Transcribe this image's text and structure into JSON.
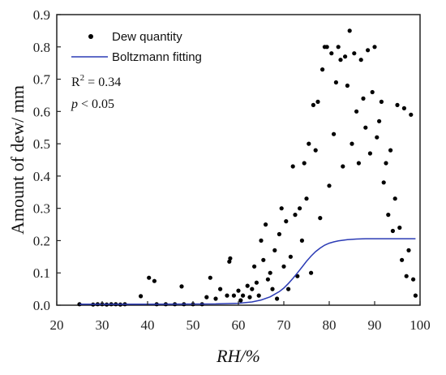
{
  "chart_data": {
    "type": "scatter",
    "title": "",
    "xlabel": "RH/%",
    "ylabel": "Amount of dew/ mm",
    "xlim": [
      20,
      100
    ],
    "ylim": [
      0,
      0.9
    ],
    "x_ticks": [
      "20",
      "30",
      "40",
      "50",
      "60",
      "70",
      "80",
      "90",
      "100"
    ],
    "y_ticks": [
      "0.0",
      "0.1",
      "0.2",
      "0.3",
      "0.4",
      "0.5",
      "0.6",
      "0.7",
      "0.8",
      "0.9"
    ],
    "grid": false,
    "legend_position": "top-left",
    "legend": [
      {
        "label": "Dew quantity",
        "marker": "dot"
      },
      {
        "label": "Boltzmann fitting",
        "marker": "line"
      }
    ],
    "annotations": {
      "r2_prefix": "R",
      "r2_sup": "2",
      "r2_suffix": " = 0.34",
      "p_symbol": "p",
      "p_suffix": " < 0.05"
    },
    "colors": {
      "points": "#000000",
      "fit": "#2b3bb5"
    },
    "series": [
      {
        "type": "scatter",
        "points": [
          [
            25,
            0.003
          ],
          [
            28,
            0.002
          ],
          [
            29,
            0.003
          ],
          [
            30,
            0.003
          ],
          [
            31,
            0.002
          ],
          [
            32,
            0.003
          ],
          [
            33,
            0.003
          ],
          [
            34,
            0.002
          ],
          [
            35,
            0.003
          ],
          [
            38.5,
            0.028
          ],
          [
            40.3,
            0.085
          ],
          [
            41.5,
            0.075
          ],
          [
            42,
            0.003
          ],
          [
            44,
            0.003
          ],
          [
            46,
            0.003
          ],
          [
            47.5,
            0.058
          ],
          [
            48,
            0.003
          ],
          [
            50,
            0.003
          ],
          [
            52,
            0.003
          ],
          [
            53,
            0.025
          ],
          [
            53.8,
            0.085
          ],
          [
            55,
            0.02
          ],
          [
            56,
            0.05
          ],
          [
            57.5,
            0.03
          ],
          [
            58,
            0.135
          ],
          [
            58.2,
            0.145
          ],
          [
            59,
            0.03
          ],
          [
            60,
            0.045
          ],
          [
            60.5,
            0.015
          ],
          [
            61,
            0.03
          ],
          [
            62,
            0.06
          ],
          [
            62.5,
            0.025
          ],
          [
            63,
            0.05
          ],
          [
            63.5,
            0.12
          ],
          [
            64,
            0.07
          ],
          [
            64.5,
            0.03
          ],
          [
            65,
            0.2
          ],
          [
            65.5,
            0.14
          ],
          [
            66,
            0.25
          ],
          [
            66.5,
            0.08
          ],
          [
            67,
            0.1
          ],
          [
            67.5,
            0.05
          ],
          [
            68,
            0.17
          ],
          [
            68.5,
            0.02
          ],
          [
            69,
            0.22
          ],
          [
            69.5,
            0.3
          ],
          [
            70,
            0.12
          ],
          [
            70.5,
            0.26
          ],
          [
            71,
            0.05
          ],
          [
            71.5,
            0.15
          ],
          [
            72,
            0.43
          ],
          [
            72.5,
            0.28
          ],
          [
            73,
            0.09
          ],
          [
            73.5,
            0.3
          ],
          [
            74,
            0.2
          ],
          [
            74.5,
            0.44
          ],
          [
            75,
            0.33
          ],
          [
            75.5,
            0.5
          ],
          [
            76,
            0.1
          ],
          [
            76.5,
            0.62
          ],
          [
            77,
            0.48
          ],
          [
            77.5,
            0.63
          ],
          [
            78,
            0.27
          ],
          [
            78.5,
            0.73
          ],
          [
            79,
            0.8
          ],
          [
            79.5,
            0.8
          ],
          [
            80,
            0.37
          ],
          [
            80.5,
            0.78
          ],
          [
            81,
            0.53
          ],
          [
            81.5,
            0.69
          ],
          [
            82,
            0.8
          ],
          [
            82.5,
            0.76
          ],
          [
            83,
            0.43
          ],
          [
            83.5,
            0.77
          ],
          [
            84,
            0.68
          ],
          [
            84.5,
            0.85
          ],
          [
            85,
            0.5
          ],
          [
            85.5,
            0.78
          ],
          [
            86,
            0.6
          ],
          [
            86.5,
            0.44
          ],
          [
            87,
            0.76
          ],
          [
            87.5,
            0.64
          ],
          [
            88,
            0.55
          ],
          [
            88.5,
            0.79
          ],
          [
            89,
            0.47
          ],
          [
            89.5,
            0.66
          ],
          [
            90,
            0.8
          ],
          [
            90.5,
            0.52
          ],
          [
            91,
            0.57
          ],
          [
            91.5,
            0.63
          ],
          [
            92,
            0.38
          ],
          [
            92.5,
            0.44
          ],
          [
            93,
            0.28
          ],
          [
            93.5,
            0.48
          ],
          [
            94,
            0.23
          ],
          [
            94.5,
            0.33
          ],
          [
            95,
            0.62
          ],
          [
            95.5,
            0.24
          ],
          [
            96,
            0.14
          ],
          [
            96.5,
            0.61
          ],
          [
            97,
            0.09
          ],
          [
            97.5,
            0.17
          ],
          [
            98,
            0.59
          ],
          [
            98.5,
            0.08
          ],
          [
            99,
            0.03
          ]
        ]
      },
      {
        "type": "line",
        "name": "Boltzmann fitting",
        "x": [
          25,
          40,
          55,
          60,
          63,
          65,
          67,
          69,
          70,
          71,
          72,
          73,
          74,
          75,
          76,
          77,
          78,
          79,
          80,
          81,
          82,
          84,
          86,
          88,
          90,
          93,
          96,
          99
        ],
        "y": [
          0.003,
          0.003,
          0.004,
          0.006,
          0.01,
          0.016,
          0.026,
          0.042,
          0.053,
          0.067,
          0.083,
          0.1,
          0.118,
          0.136,
          0.152,
          0.166,
          0.177,
          0.186,
          0.192,
          0.196,
          0.199,
          0.203,
          0.205,
          0.206,
          0.206,
          0.206,
          0.206,
          0.206
        ]
      }
    ]
  }
}
